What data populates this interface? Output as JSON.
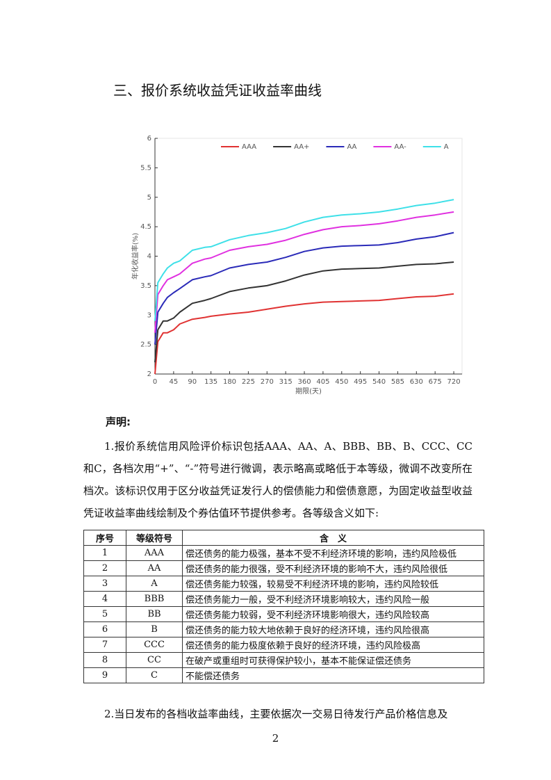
{
  "heading": "三、报价系统收益凭证收益率曲线",
  "chart_data": {
    "type": "line",
    "xlabel": "期限(天)",
    "ylabel": "年化收益率(%)",
    "x": [
      0,
      7,
      20,
      30,
      45,
      60,
      90,
      120,
      135,
      180,
      225,
      270,
      315,
      360,
      405,
      450,
      495,
      540,
      585,
      630,
      675,
      720
    ],
    "xlim": [
      0,
      740
    ],
    "xticks": [
      0,
      45,
      90,
      135,
      180,
      225,
      270,
      315,
      360,
      405,
      450,
      495,
      540,
      585,
      630,
      675,
      720
    ],
    "ylim": [
      2,
      6
    ],
    "yticks": [
      2,
      2.5,
      3,
      3.5,
      4,
      4.5,
      5,
      5.5,
      6
    ],
    "legend": "top",
    "series": [
      {
        "name": "AAA",
        "color": "#e03232",
        "values": [
          2.0,
          2.55,
          2.7,
          2.7,
          2.75,
          2.85,
          2.93,
          2.96,
          2.98,
          3.02,
          3.05,
          3.1,
          3.15,
          3.19,
          3.22,
          3.23,
          3.24,
          3.25,
          3.28,
          3.31,
          3.32,
          3.36
        ]
      },
      {
        "name": "AA+",
        "color": "#333333",
        "values": [
          2.2,
          2.75,
          2.9,
          2.9,
          2.95,
          3.05,
          3.2,
          3.25,
          3.28,
          3.4,
          3.46,
          3.5,
          3.58,
          3.68,
          3.75,
          3.78,
          3.79,
          3.8,
          3.83,
          3.86,
          3.87,
          3.9
        ]
      },
      {
        "name": "AA",
        "color": "#2a2ab8",
        "values": [
          2.5,
          3.05,
          3.2,
          3.3,
          3.38,
          3.45,
          3.6,
          3.65,
          3.67,
          3.8,
          3.86,
          3.9,
          3.98,
          4.08,
          4.14,
          4.17,
          4.18,
          4.19,
          4.23,
          4.29,
          4.33,
          4.4
        ]
      },
      {
        "name": "AA-",
        "color": "#e030e0",
        "values": [
          2.7,
          3.35,
          3.5,
          3.6,
          3.65,
          3.7,
          3.88,
          3.95,
          3.97,
          4.1,
          4.16,
          4.2,
          4.27,
          4.37,
          4.45,
          4.5,
          4.52,
          4.55,
          4.6,
          4.66,
          4.7,
          4.75
        ]
      },
      {
        "name": "A",
        "color": "#3ee0e8",
        "values": [
          2.9,
          3.55,
          3.7,
          3.8,
          3.88,
          3.92,
          4.1,
          4.15,
          4.16,
          4.28,
          4.35,
          4.4,
          4.47,
          4.58,
          4.66,
          4.7,
          4.72,
          4.75,
          4.8,
          4.86,
          4.9,
          4.96
        ]
      }
    ]
  },
  "statement": {
    "title": "声明:",
    "paragraph1": "1.报价系统信用风险评价标识包括AAA、AA、A、BBB、BB、B、CCC、CC和C，各档次用“+”、“-”符号进行微调，表示略高或略低于本等级，微调不改变所在档次。该标识仅用于区分收益凭证发行人的偿债能力和偿债意愿，为固定收益型收益凭证收益率曲线绘制及个券估值环节提供参考。各等级含义如下:",
    "paragraph2": "2.当日发布的各档收益率曲线，主要依据次一交易日待发行产品价格信息及"
  },
  "table": {
    "header": [
      "序号",
      "等级符号",
      "含　义"
    ],
    "rows": [
      [
        "1",
        "AAA",
        "偿还债务的能力极强，基本不受不利经济环境的影响，违约风险极低"
      ],
      [
        "2",
        "AA",
        "偿还债务的能力很强，受不利经济环境的影响不大，违约风险很低"
      ],
      [
        "3",
        "A",
        "偿还债务能力较强，较易受不利经济环境的影响，违约风险较低"
      ],
      [
        "4",
        "BBB",
        "偿还债务能力一般，受不利经济环境影响较大，违约风险一般"
      ],
      [
        "5",
        "BB",
        "偿还债务能力较弱，受不利经济环境影响很大，违约风险较高"
      ],
      [
        "6",
        "B",
        "偿还债务的能力较大地依赖于良好的经济环境，违约风险很高"
      ],
      [
        "7",
        "CCC",
        "偿还债务的能力极度依赖于良好的经济环境，违约风险极高"
      ],
      [
        "8",
        "CC",
        "在破产或重组时可获得保护较小，基本不能保证偿还债务"
      ],
      [
        "9",
        "C",
        "不能偿还债务"
      ]
    ]
  },
  "page_number": "2"
}
